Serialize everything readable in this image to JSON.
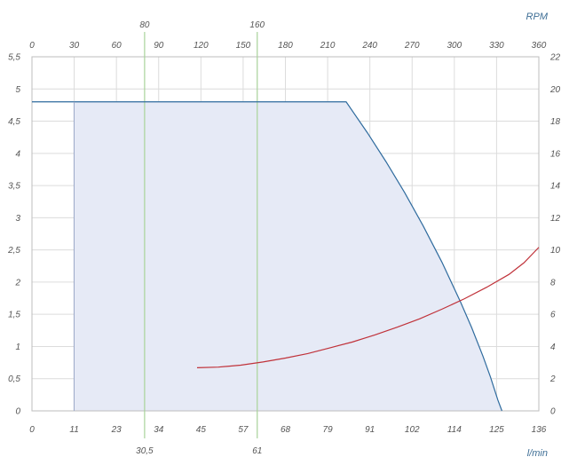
{
  "chart_data": {
    "type": "area",
    "title": "",
    "units": {
      "top_axis": "RPM",
      "bottom_axis": "l/min"
    },
    "axes": {
      "bottom": {
        "label": "l/min",
        "min": 0,
        "max": 136,
        "ticks": [
          "0",
          "11",
          "23",
          "34",
          "45",
          "57",
          "68",
          "79",
          "91",
          "102",
          "114",
          "125",
          "136"
        ]
      },
      "top": {
        "label": "RPM",
        "min": 0,
        "max": 360,
        "ticks": [
          "0",
          "30",
          "60",
          "90",
          "120",
          "150",
          "180",
          "210",
          "240",
          "270",
          "300",
          "330",
          "360"
        ]
      },
      "left": {
        "min": 0,
        "max": 5.5,
        "ticks": [
          "0",
          "0,5",
          "1",
          "1,5",
          "2",
          "2,5",
          "3",
          "3,5",
          "4",
          "4,5",
          "5",
          "5,5"
        ]
      },
      "right": {
        "min": 0,
        "max": 22,
        "ticks": [
          "0",
          "2",
          "4",
          "6",
          "8",
          "10",
          "12",
          "14",
          "16",
          "18",
          "20",
          "22"
        ]
      }
    },
    "markers": [
      {
        "rpm_label": "80",
        "flow_label": "30,5",
        "rpm": 80,
        "color": "#a9d39a"
      },
      {
        "rpm_label": "160",
        "flow_label": "61",
        "rpm": 160,
        "color": "#a9d39a"
      }
    ],
    "series": [
      {
        "role": "envelope",
        "color": "#2f6b9e",
        "fill": "#e6eaf6",
        "points": [
          [
            0,
            4.8
          ],
          [
            11.3,
            4.8
          ],
          [
            84.3,
            4.8
          ],
          [
            90,
            4.32
          ],
          [
            95,
            3.87
          ],
          [
            100,
            3.39
          ],
          [
            105,
            2.87
          ],
          [
            110,
            2.31
          ],
          [
            115,
            1.69
          ],
          [
            118,
            1.29
          ],
          [
            121,
            0.85
          ],
          [
            123,
            0.53
          ],
          [
            125,
            0.17
          ],
          [
            126.1,
            0
          ]
        ],
        "lower_start_x": 11.3
      },
      {
        "role": "curve",
        "color": "#c0323a",
        "points": [
          [
            44.3,
            0.67
          ],
          [
            50,
            0.68
          ],
          [
            56,
            0.71
          ],
          [
            62,
            0.76
          ],
          [
            68,
            0.82
          ],
          [
            74,
            0.89
          ],
          [
            80,
            0.98
          ],
          [
            86,
            1.07
          ],
          [
            92,
            1.18
          ],
          [
            98,
            1.3
          ],
          [
            104,
            1.43
          ],
          [
            110,
            1.58
          ],
          [
            116,
            1.74
          ],
          [
            122,
            1.92
          ],
          [
            128,
            2.12
          ],
          [
            132,
            2.3
          ],
          [
            136,
            2.54
          ]
        ]
      }
    ],
    "grid": true
  }
}
